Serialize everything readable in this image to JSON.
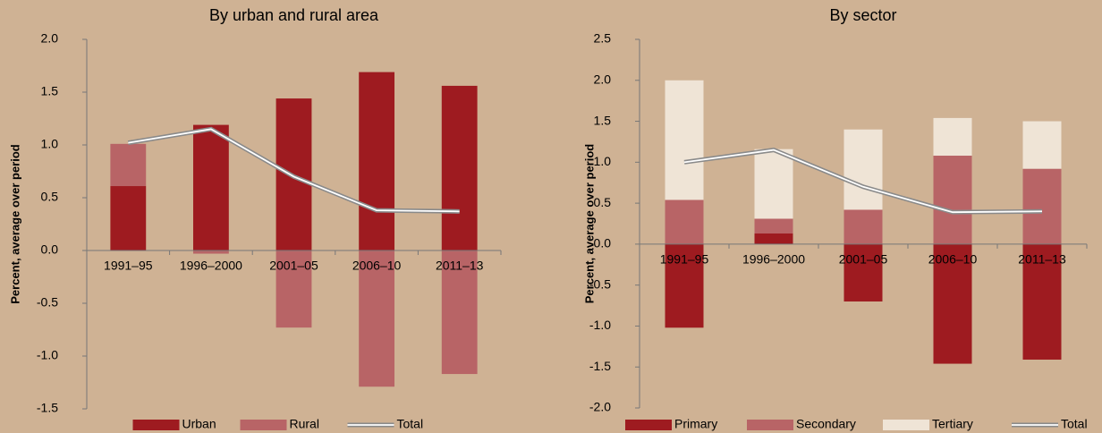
{
  "chart_data": [
    {
      "type": "bar",
      "stacked": true,
      "title": "By urban and rural area",
      "y_label": "Percent, average over period",
      "categories": [
        "1991–95",
        "1996–2000",
        "2001–05",
        "2006–10",
        "2011–13"
      ],
      "series": [
        {
          "name": "Urban",
          "color": "#9e1b20",
          "values": [
            0.61,
            1.19,
            1.44,
            1.69,
            1.56
          ]
        },
        {
          "name": "Rural",
          "color": "#b86466",
          "values": [
            0.4,
            -0.03,
            -0.73,
            -1.29,
            -1.17
          ]
        },
        {
          "name": "Total",
          "type": "line",
          "color": "#8a8a8a",
          "values": [
            1.02,
            1.15,
            0.7,
            0.38,
            0.37
          ]
        }
      ],
      "ylim": [
        -1.5,
        2.0
      ],
      "yticks": [
        {
          "value": -1.5,
          "label": "-1.5"
        },
        {
          "value": -1.0,
          "label": "-1.0"
        },
        {
          "value": -0.5,
          "label": "-0.5"
        },
        {
          "value": 0,
          "label": "0.0"
        },
        0.5,
        {
          "value": 1.0,
          "label": "1.0"
        },
        1.5,
        {
          "value": 2.0,
          "label": "2.0"
        }
      ]
    },
    {
      "type": "bar",
      "stacked": true,
      "title": "By sector",
      "y_label": "Percent, average over period",
      "categories": [
        "1991–95",
        "1996–2000",
        "2001–05",
        "2006–10",
        "2011–13"
      ],
      "series": [
        {
          "name": "Primary",
          "color": "#9e1b20",
          "values": [
            -1.02,
            0.13,
            -0.7,
            -1.46,
            -1.41
          ]
        },
        {
          "name": "Secondary",
          "color": "#b86466",
          "values": [
            0.54,
            0.18,
            0.42,
            1.08,
            0.92
          ]
        },
        {
          "name": "Tertiary",
          "color": "#efe4d6",
          "values": [
            1.46,
            0.85,
            0.98,
            0.46,
            0.58
          ]
        },
        {
          "name": "Total",
          "type": "line",
          "color": "#8a8a8a",
          "values": [
            1.0,
            1.15,
            0.7,
            0.39,
            0.4
          ]
        }
      ],
      "ylim": [
        -2.0,
        2.5
      ],
      "yticks": [
        {
          "value": -2.0,
          "label": "-2.0"
        },
        {
          "value": -1.5,
          "label": "-1.5"
        },
        {
          "value": -1.0,
          "label": "-1.0"
        },
        {
          "value": -0.5,
          "label": "-0.5"
        },
        {
          "value": 0,
          "label": "0.0"
        },
        0.5,
        {
          "value": 1.0,
          "label": "1.0"
        },
        1.5,
        {
          "value": 2.0,
          "label": "2.0"
        },
        2.5
      ]
    }
  ]
}
